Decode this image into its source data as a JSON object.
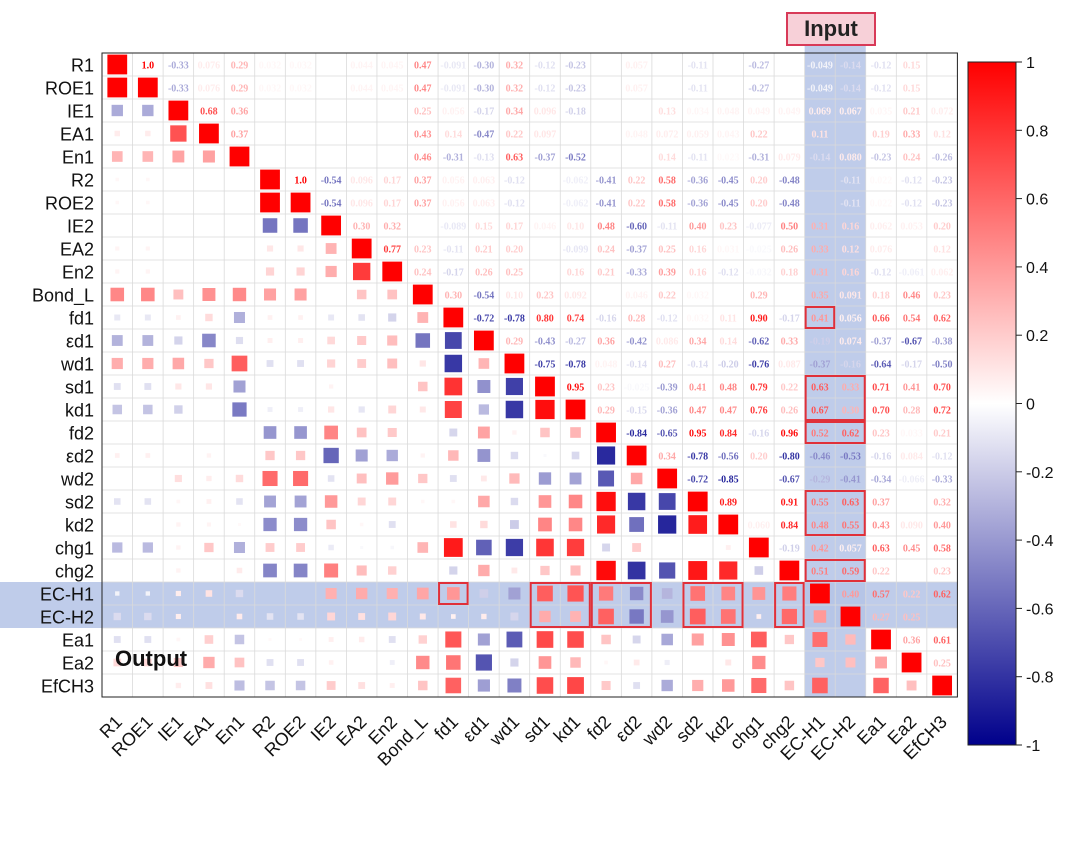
{
  "labels": [
    "R1",
    "ROE1",
    "IE1",
    "EA1",
    "En1",
    "R2",
    "ROE2",
    "IE2",
    "EA2",
    "En2",
    "Bond_L",
    "fd1",
    "εd1",
    "wd1",
    "sd1",
    "kd1",
    "fd2",
    "εd2",
    "wd2",
    "sd2",
    "kd2",
    "chg1",
    "chg2",
    "EC-H1",
    "EC-H2",
    "Ea1",
    "Ea2",
    "EfCH3"
  ],
  "annotations": {
    "input_label": "Input",
    "output_label": "Output"
  },
  "colors": {
    "positive": "#ff0000",
    "negative": "#00008b",
    "zero": "#ffffff",
    "highlight_band": "#b4c3e6",
    "box": "#e0303a"
  },
  "chart_data": {
    "type": "heatmap",
    "title": "",
    "matrix_style": "lower triangle squares sized by |r|, upper triangle printed coefficients",
    "colorbar": {
      "min": -1,
      "max": 1,
      "ticks": [
        "1",
        "0.8",
        "0.6",
        "0.4",
        "0.2",
        "0",
        "-0.2",
        "-0.4",
        "-0.6",
        "-0.8",
        "-1"
      ]
    },
    "cells": [
      [
        0,
        1,
        "1.0"
      ],
      [
        0,
        2,
        "-0.33"
      ],
      [
        0,
        3,
        "0.076"
      ],
      [
        0,
        4,
        "0.29"
      ],
      [
        0,
        5,
        "0.032"
      ],
      [
        0,
        6,
        "0.032"
      ],
      [
        0,
        8,
        "0.044"
      ],
      [
        0,
        9,
        "0.045"
      ],
      [
        0,
        10,
        "0.47"
      ],
      [
        0,
        11,
        "-0.091"
      ],
      [
        0,
        12,
        "-0.30"
      ],
      [
        0,
        13,
        "0.32"
      ],
      [
        0,
        14,
        "-0.12"
      ],
      [
        0,
        15,
        "-0.23"
      ],
      [
        0,
        17,
        "0.057"
      ],
      [
        0,
        19,
        "-0.11"
      ],
      [
        0,
        21,
        "-0.27"
      ],
      [
        0,
        23,
        "-0.049"
      ],
      [
        0,
        24,
        "-0.14"
      ],
      [
        0,
        25,
        "-0.12"
      ],
      [
        0,
        26,
        "0.15"
      ],
      [
        1,
        2,
        "-0.33"
      ],
      [
        1,
        3,
        "0.076"
      ],
      [
        1,
        4,
        "0.29"
      ],
      [
        1,
        5,
        "0.032"
      ],
      [
        1,
        6,
        "0.032"
      ],
      [
        1,
        8,
        "0.044"
      ],
      [
        1,
        9,
        "0.045"
      ],
      [
        1,
        10,
        "0.47"
      ],
      [
        1,
        11,
        "-0.091"
      ],
      [
        1,
        12,
        "-0.30"
      ],
      [
        1,
        13,
        "0.32"
      ],
      [
        1,
        14,
        "-0.12"
      ],
      [
        1,
        15,
        "-0.23"
      ],
      [
        1,
        17,
        "0.057"
      ],
      [
        1,
        19,
        "-0.11"
      ],
      [
        1,
        21,
        "-0.27"
      ],
      [
        1,
        23,
        "-0.049"
      ],
      [
        1,
        24,
        "-0.14"
      ],
      [
        1,
        25,
        "-0.12"
      ],
      [
        1,
        26,
        "0.15"
      ],
      [
        2,
        3,
        "0.68"
      ],
      [
        2,
        4,
        "0.36"
      ],
      [
        2,
        10,
        "0.25"
      ],
      [
        2,
        11,
        "0.056"
      ],
      [
        2,
        12,
        "-0.17"
      ],
      [
        2,
        13,
        "0.34"
      ],
      [
        2,
        14,
        "0.096"
      ],
      [
        2,
        15,
        "-0.18"
      ],
      [
        2,
        18,
        "0.13"
      ],
      [
        2,
        19,
        "0.034"
      ],
      [
        2,
        20,
        "0.048"
      ],
      [
        2,
        21,
        "0.049"
      ],
      [
        2,
        22,
        "0.049"
      ],
      [
        2,
        23,
        "0.069"
      ],
      [
        2,
        24,
        "0.067"
      ],
      [
        2,
        25,
        "0.035"
      ],
      [
        2,
        26,
        "0.21"
      ],
      [
        2,
        27,
        "0.072"
      ],
      [
        3,
        4,
        "0.37"
      ],
      [
        3,
        10,
        "0.43"
      ],
      [
        3,
        11,
        "0.14"
      ],
      [
        3,
        12,
        "-0.47"
      ],
      [
        3,
        13,
        "0.22"
      ],
      [
        3,
        14,
        "0.097"
      ],
      [
        3,
        17,
        "0.048"
      ],
      [
        3,
        18,
        "0.072"
      ],
      [
        3,
        19,
        "0.059"
      ],
      [
        3,
        20,
        "0.043"
      ],
      [
        3,
        21,
        "0.22"
      ],
      [
        3,
        23,
        "0.11"
      ],
      [
        3,
        25,
        "0.19"
      ],
      [
        3,
        26,
        "0.33"
      ],
      [
        3,
        27,
        "0.12"
      ],
      [
        4,
        10,
        "0.46"
      ],
      [
        4,
        11,
        "-0.31"
      ],
      [
        4,
        12,
        "-0.13"
      ],
      [
        4,
        13,
        "0.63"
      ],
      [
        4,
        14,
        "-0.37"
      ],
      [
        4,
        15,
        "-0.52"
      ],
      [
        4,
        18,
        "0.14"
      ],
      [
        4,
        19,
        "-0.11"
      ],
      [
        4,
        20,
        "0.023"
      ],
      [
        4,
        21,
        "-0.31"
      ],
      [
        4,
        22,
        "0.079"
      ],
      [
        4,
        23,
        "-0.14"
      ],
      [
        4,
        24,
        "0.080"
      ],
      [
        4,
        25,
        "-0.23"
      ],
      [
        4,
        26,
        "0.24"
      ],
      [
        4,
        27,
        "-0.26"
      ],
      [
        5,
        6,
        "1.0"
      ],
      [
        5,
        7,
        "-0.54"
      ],
      [
        5,
        8,
        "0.096"
      ],
      [
        5,
        9,
        "0.17"
      ],
      [
        5,
        10,
        "0.37"
      ],
      [
        5,
        11,
        "0.056"
      ],
      [
        5,
        12,
        "0.063"
      ],
      [
        5,
        13,
        "-0.12"
      ],
      [
        5,
        15,
        "-0.062"
      ],
      [
        5,
        16,
        "-0.41"
      ],
      [
        5,
        17,
        "0.22"
      ],
      [
        5,
        18,
        "0.58"
      ],
      [
        5,
        19,
        "-0.36"
      ],
      [
        5,
        20,
        "-0.45"
      ],
      [
        5,
        21,
        "0.20"
      ],
      [
        5,
        22,
        "-0.48"
      ],
      [
        5,
        24,
        "-0.11"
      ],
      [
        5,
        25,
        "0.022"
      ],
      [
        5,
        26,
        "-0.12"
      ],
      [
        5,
        27,
        "-0.23"
      ],
      [
        6,
        7,
        "-0.54"
      ],
      [
        6,
        8,
        "0.096"
      ],
      [
        6,
        9,
        "0.17"
      ],
      [
        6,
        10,
        "0.37"
      ],
      [
        6,
        11,
        "0.056"
      ],
      [
        6,
        12,
        "0.063"
      ],
      [
        6,
        13,
        "-0.12"
      ],
      [
        6,
        15,
        "-0.062"
      ],
      [
        6,
        16,
        "-0.41"
      ],
      [
        6,
        17,
        "0.22"
      ],
      [
        6,
        18,
        "0.58"
      ],
      [
        6,
        19,
        "-0.36"
      ],
      [
        6,
        20,
        "-0.45"
      ],
      [
        6,
        21,
        "0.20"
      ],
      [
        6,
        22,
        "-0.48"
      ],
      [
        6,
        24,
        "-0.11"
      ],
      [
        6,
        25,
        "0.022"
      ],
      [
        6,
        26,
        "-0.12"
      ],
      [
        6,
        27,
        "-0.23"
      ],
      [
        7,
        8,
        "0.30"
      ],
      [
        7,
        9,
        "0.32"
      ],
      [
        7,
        11,
        "-0.089"
      ],
      [
        7,
        12,
        "0.15"
      ],
      [
        7,
        13,
        "0.17"
      ],
      [
        7,
        14,
        "0.046"
      ],
      [
        7,
        15,
        "0.10"
      ],
      [
        7,
        16,
        "0.48"
      ],
      [
        7,
        17,
        "-0.60"
      ],
      [
        7,
        18,
        "-0.11"
      ],
      [
        7,
        19,
        "0.40"
      ],
      [
        7,
        20,
        "0.23"
      ],
      [
        7,
        21,
        "-0.077"
      ],
      [
        7,
        22,
        "0.50"
      ],
      [
        7,
        23,
        "0.31"
      ],
      [
        7,
        24,
        "0.16"
      ],
      [
        7,
        25,
        "0.062"
      ],
      [
        7,
        26,
        "0.053"
      ],
      [
        7,
        27,
        "0.20"
      ],
      [
        8,
        9,
        "0.77"
      ],
      [
        8,
        10,
        "0.23"
      ],
      [
        8,
        11,
        "-0.11"
      ],
      [
        8,
        12,
        "0.21"
      ],
      [
        8,
        13,
        "0.20"
      ],
      [
        8,
        15,
        "-0.099"
      ],
      [
        8,
        16,
        "0.24"
      ],
      [
        8,
        17,
        "-0.37"
      ],
      [
        8,
        18,
        "0.25"
      ],
      [
        8,
        19,
        "0.16"
      ],
      [
        8,
        20,
        "0.031"
      ],
      [
        8,
        21,
        "-0.025"
      ],
      [
        8,
        22,
        "0.26"
      ],
      [
        8,
        23,
        "0.33"
      ],
      [
        8,
        24,
        "0.12"
      ],
      [
        8,
        25,
        "0.076"
      ],
      [
        8,
        27,
        "0.12"
      ],
      [
        9,
        10,
        "0.24"
      ],
      [
        9,
        11,
        "-0.17"
      ],
      [
        9,
        12,
        "0.26"
      ],
      [
        9,
        13,
        "0.25"
      ],
      [
        9,
        15,
        "0.16"
      ],
      [
        9,
        16,
        "0.21"
      ],
      [
        9,
        17,
        "-0.33"
      ],
      [
        9,
        18,
        "0.39"
      ],
      [
        9,
        19,
        "0.16"
      ],
      [
        9,
        20,
        "-0.12"
      ],
      [
        9,
        21,
        "-0.032"
      ],
      [
        9,
        22,
        "0.18"
      ],
      [
        9,
        23,
        "0.31"
      ],
      [
        9,
        24,
        "0.16"
      ],
      [
        9,
        25,
        "-0.12"
      ],
      [
        9,
        26,
        "-0.061"
      ],
      [
        9,
        27,
        "0.062"
      ],
      [
        10,
        11,
        "0.30"
      ],
      [
        10,
        12,
        "-0.54"
      ],
      [
        10,
        13,
        "0.10"
      ],
      [
        10,
        14,
        "0.23"
      ],
      [
        10,
        15,
        "0.092"
      ],
      [
        10,
        17,
        "0.046"
      ],
      [
        10,
        18,
        "0.22"
      ],
      [
        10,
        19,
        "0.032"
      ],
      [
        10,
        21,
        "0.29"
      ],
      [
        10,
        23,
        "0.35"
      ],
      [
        10,
        24,
        "0.091"
      ],
      [
        10,
        25,
        "0.18"
      ],
      [
        10,
        26,
        "0.46"
      ],
      [
        10,
        27,
        "0.23"
      ],
      [
        11,
        12,
        "-0.72"
      ],
      [
        11,
        13,
        "-0.78"
      ],
      [
        11,
        14,
        "0.80"
      ],
      [
        11,
        15,
        "0.74"
      ],
      [
        11,
        16,
        "-0.16"
      ],
      [
        11,
        17,
        "0.28"
      ],
      [
        11,
        18,
        "-0.12"
      ],
      [
        11,
        19,
        "0.032"
      ],
      [
        11,
        20,
        "0.11"
      ],
      [
        11,
        21,
        "0.90"
      ],
      [
        11,
        22,
        "-0.17"
      ],
      [
        11,
        23,
        "0.41"
      ],
      [
        11,
        24,
        "0.056"
      ],
      [
        11,
        25,
        "0.66"
      ],
      [
        11,
        26,
        "0.54"
      ],
      [
        11,
        27,
        "0.62"
      ],
      [
        12,
        13,
        "0.29"
      ],
      [
        12,
        14,
        "-0.43"
      ],
      [
        12,
        15,
        "-0.27"
      ],
      [
        12,
        16,
        "0.36"
      ],
      [
        12,
        17,
        "-0.42"
      ],
      [
        12,
        18,
        "0.086"
      ],
      [
        12,
        19,
        "0.34"
      ],
      [
        12,
        20,
        "0.14"
      ],
      [
        12,
        21,
        "-0.62"
      ],
      [
        12,
        22,
        "0.33"
      ],
      [
        12,
        23,
        "-0.19"
      ],
      [
        12,
        24,
        "0.074"
      ],
      [
        12,
        25,
        "-0.37"
      ],
      [
        12,
        26,
        "-0.67"
      ],
      [
        12,
        27,
        "-0.38"
      ],
      [
        13,
        14,
        "-0.75"
      ],
      [
        13,
        15,
        "-0.78"
      ],
      [
        13,
        16,
        "0.048"
      ],
      [
        13,
        17,
        "-0.14"
      ],
      [
        13,
        18,
        "0.27"
      ],
      [
        13,
        19,
        "-0.14"
      ],
      [
        13,
        20,
        "-0.20"
      ],
      [
        13,
        21,
        "-0.76"
      ],
      [
        13,
        22,
        "0.087"
      ],
      [
        13,
        23,
        "-0.37"
      ],
      [
        13,
        24,
        "-0.16"
      ],
      [
        13,
        25,
        "-0.64"
      ],
      [
        13,
        26,
        "-0.17"
      ],
      [
        13,
        27,
        "-0.50"
      ],
      [
        14,
        15,
        "0.95"
      ],
      [
        14,
        16,
        "0.23"
      ],
      [
        14,
        17,
        "-0.025"
      ],
      [
        14,
        18,
        "-0.39"
      ],
      [
        14,
        19,
        "0.41"
      ],
      [
        14,
        20,
        "0.48"
      ],
      [
        14,
        21,
        "0.79"
      ],
      [
        14,
        22,
        "0.22"
      ],
      [
        14,
        23,
        "0.63"
      ],
      [
        14,
        24,
        "0.33"
      ],
      [
        14,
        25,
        "0.71"
      ],
      [
        14,
        26,
        "0.41"
      ],
      [
        14,
        27,
        "0.70"
      ],
      [
        15,
        16,
        "0.29"
      ],
      [
        15,
        17,
        "-0.15"
      ],
      [
        15,
        18,
        "-0.36"
      ],
      [
        15,
        19,
        "0.47"
      ],
      [
        15,
        20,
        "0.47"
      ],
      [
        15,
        21,
        "0.76"
      ],
      [
        15,
        22,
        "0.26"
      ],
      [
        15,
        23,
        "0.67"
      ],
      [
        15,
        24,
        "0.30"
      ],
      [
        15,
        25,
        "0.70"
      ],
      [
        15,
        26,
        "0.28"
      ],
      [
        15,
        27,
        "0.72"
      ],
      [
        16,
        17,
        "-0.84"
      ],
      [
        16,
        18,
        "-0.65"
      ],
      [
        16,
        19,
        "0.95"
      ],
      [
        16,
        20,
        "0.84"
      ],
      [
        16,
        21,
        "-0.16"
      ],
      [
        16,
        22,
        "0.96"
      ],
      [
        16,
        23,
        "0.52"
      ],
      [
        16,
        24,
        "0.62"
      ],
      [
        16,
        25,
        "0.23"
      ],
      [
        16,
        26,
        "0.033"
      ],
      [
        16,
        27,
        "0.21"
      ],
      [
        17,
        18,
        "0.34"
      ],
      [
        17,
        19,
        "-0.78"
      ],
      [
        17,
        20,
        "-0.56"
      ],
      [
        17,
        21,
        "0.20"
      ],
      [
        17,
        22,
        "-0.80"
      ],
      [
        17,
        23,
        "-0.46"
      ],
      [
        17,
        24,
        "-0.53"
      ],
      [
        17,
        25,
        "-0.16"
      ],
      [
        17,
        26,
        "0.084"
      ],
      [
        17,
        27,
        "-0.12"
      ],
      [
        18,
        19,
        "-0.72"
      ],
      [
        18,
        20,
        "-0.85"
      ],
      [
        18,
        22,
        "-0.67"
      ],
      [
        18,
        23,
        "-0.29"
      ],
      [
        18,
        24,
        "-0.41"
      ],
      [
        18,
        25,
        "-0.34"
      ],
      [
        18,
        26,
        "-0.066"
      ],
      [
        18,
        27,
        "-0.33"
      ],
      [
        19,
        20,
        "0.89"
      ],
      [
        19,
        22,
        "0.91"
      ],
      [
        19,
        23,
        "0.55"
      ],
      [
        19,
        24,
        "0.63"
      ],
      [
        19,
        25,
        "0.37"
      ],
      [
        19,
        27,
        "0.32"
      ],
      [
        20,
        21,
        "0.060"
      ],
      [
        20,
        22,
        "0.84"
      ],
      [
        20,
        23,
        "0.48"
      ],
      [
        20,
        24,
        "0.55"
      ],
      [
        20,
        25,
        "0.43"
      ],
      [
        20,
        26,
        "0.090"
      ],
      [
        20,
        27,
        "0.40"
      ],
      [
        21,
        22,
        "-0.19"
      ],
      [
        21,
        23,
        "0.42"
      ],
      [
        21,
        24,
        "0.057"
      ],
      [
        21,
        25,
        "0.63"
      ],
      [
        21,
        26,
        "0.45"
      ],
      [
        21,
        27,
        "0.58"
      ],
      [
        22,
        23,
        "0.51"
      ],
      [
        22,
        24,
        "0.59"
      ],
      [
        22,
        25,
        "0.22"
      ],
      [
        22,
        27,
        "0.23"
      ],
      [
        23,
        24,
        "0.40"
      ],
      [
        23,
        25,
        "0.57"
      ],
      [
        23,
        26,
        "0.22"
      ],
      [
        23,
        27,
        "0.62"
      ],
      [
        24,
        25,
        "0.27"
      ],
      [
        24,
        26,
        "0.25"
      ],
      [
        25,
        26,
        "0.36"
      ],
      [
        25,
        27,
        "0.61"
      ],
      [
        26,
        27,
        "0.25"
      ]
    ]
  }
}
